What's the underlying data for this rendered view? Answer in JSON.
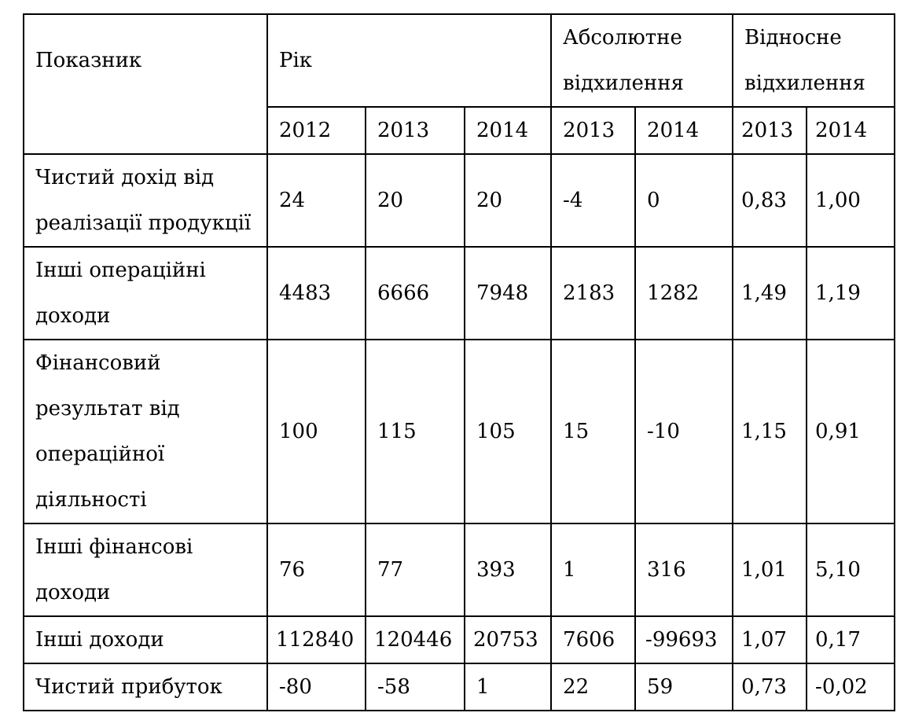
{
  "header": {
    "indicator": "Показник",
    "year": "Рік",
    "absolute_deviation": "Абсолютне відхилення",
    "relative_deviation": "Відносне відхилення",
    "years": [
      "2012",
      "2013",
      "2014"
    ],
    "abs_years": [
      "2013",
      "2014"
    ],
    "rel_years": [
      "2013",
      "2014"
    ]
  },
  "rows": [
    {
      "label": "Чистий дохід від реалізації продукції",
      "values": [
        "24",
        "20",
        "20",
        "-4",
        "0",
        "0,83",
        "1,00"
      ]
    },
    {
      "label": "Інші операційні доходи",
      "values": [
        "4483",
        "6666",
        "7948",
        "2183",
        "1282",
        "1,49",
        "1,19"
      ]
    },
    {
      "label": "Фінансовий результат від операційної діяльності",
      "values": [
        "100",
        "115",
        "105",
        "15",
        "-10",
        "1,15",
        "0,91"
      ]
    },
    {
      "label": "Інші фінансові доходи",
      "values": [
        "76",
        "77",
        "393",
        "1",
        "316",
        "1,01",
        "5,10"
      ]
    },
    {
      "label": "Інші доходи",
      "values": [
        "112840",
        "120446",
        "20753",
        "7606",
        "-99693",
        "1,07",
        "0,17"
      ]
    },
    {
      "label": "Чистий прибуток",
      "values": [
        "-80",
        "-58",
        "1",
        "22",
        "59",
        "0,73",
        "-0,02"
      ]
    }
  ]
}
